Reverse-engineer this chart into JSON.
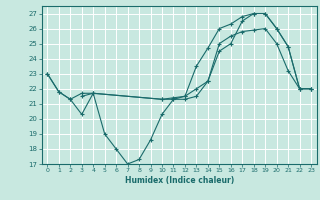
{
  "title": "",
  "xlabel": "Humidex (Indice chaleur)",
  "xlim": [
    -0.5,
    23.5
  ],
  "ylim": [
    17,
    27.5
  ],
  "yticks": [
    17,
    18,
    19,
    20,
    21,
    22,
    23,
    24,
    25,
    26,
    27
  ],
  "xticks": [
    0,
    1,
    2,
    3,
    4,
    5,
    6,
    7,
    8,
    9,
    10,
    11,
    12,
    13,
    14,
    15,
    16,
    17,
    18,
    19,
    20,
    21,
    22,
    23
  ],
  "bg_color": "#c8e8e0",
  "line_color": "#1a6b6b",
  "grid_color": "#ffffff",
  "line1_x": [
    0,
    1,
    2,
    3,
    4,
    10,
    11,
    12,
    13,
    14,
    15,
    16,
    17,
    18,
    19,
    20,
    21,
    22,
    23
  ],
  "line1_y": [
    23,
    21.8,
    21.3,
    21.7,
    21.7,
    21.3,
    21.4,
    21.5,
    23.5,
    24.7,
    26.0,
    26.3,
    26.8,
    27.0,
    27.0,
    26.0,
    24.8,
    22.0,
    22.0
  ],
  "line2_x": [
    0,
    1,
    2,
    3,
    4,
    5,
    6,
    7,
    8,
    9,
    10,
    11,
    12,
    13,
    14,
    15,
    16,
    17,
    18,
    19,
    20,
    21,
    22,
    23
  ],
  "line2_y": [
    23,
    21.8,
    21.3,
    20.3,
    21.7,
    19.0,
    18.0,
    17.0,
    17.3,
    18.6,
    20.3,
    21.3,
    21.3,
    21.5,
    22.5,
    25.0,
    25.5,
    25.8,
    25.9,
    26.0,
    25.0,
    23.2,
    22.0,
    22.0
  ],
  "line3_x": [
    3,
    4,
    10,
    11,
    12,
    13,
    14,
    15,
    16,
    17,
    18,
    19,
    20,
    21,
    22,
    23
  ],
  "line3_y": [
    21.5,
    21.7,
    21.3,
    21.3,
    21.5,
    22.0,
    22.5,
    24.5,
    25.0,
    26.5,
    27.0,
    27.0,
    26.0,
    24.8,
    22.0,
    22.0
  ]
}
